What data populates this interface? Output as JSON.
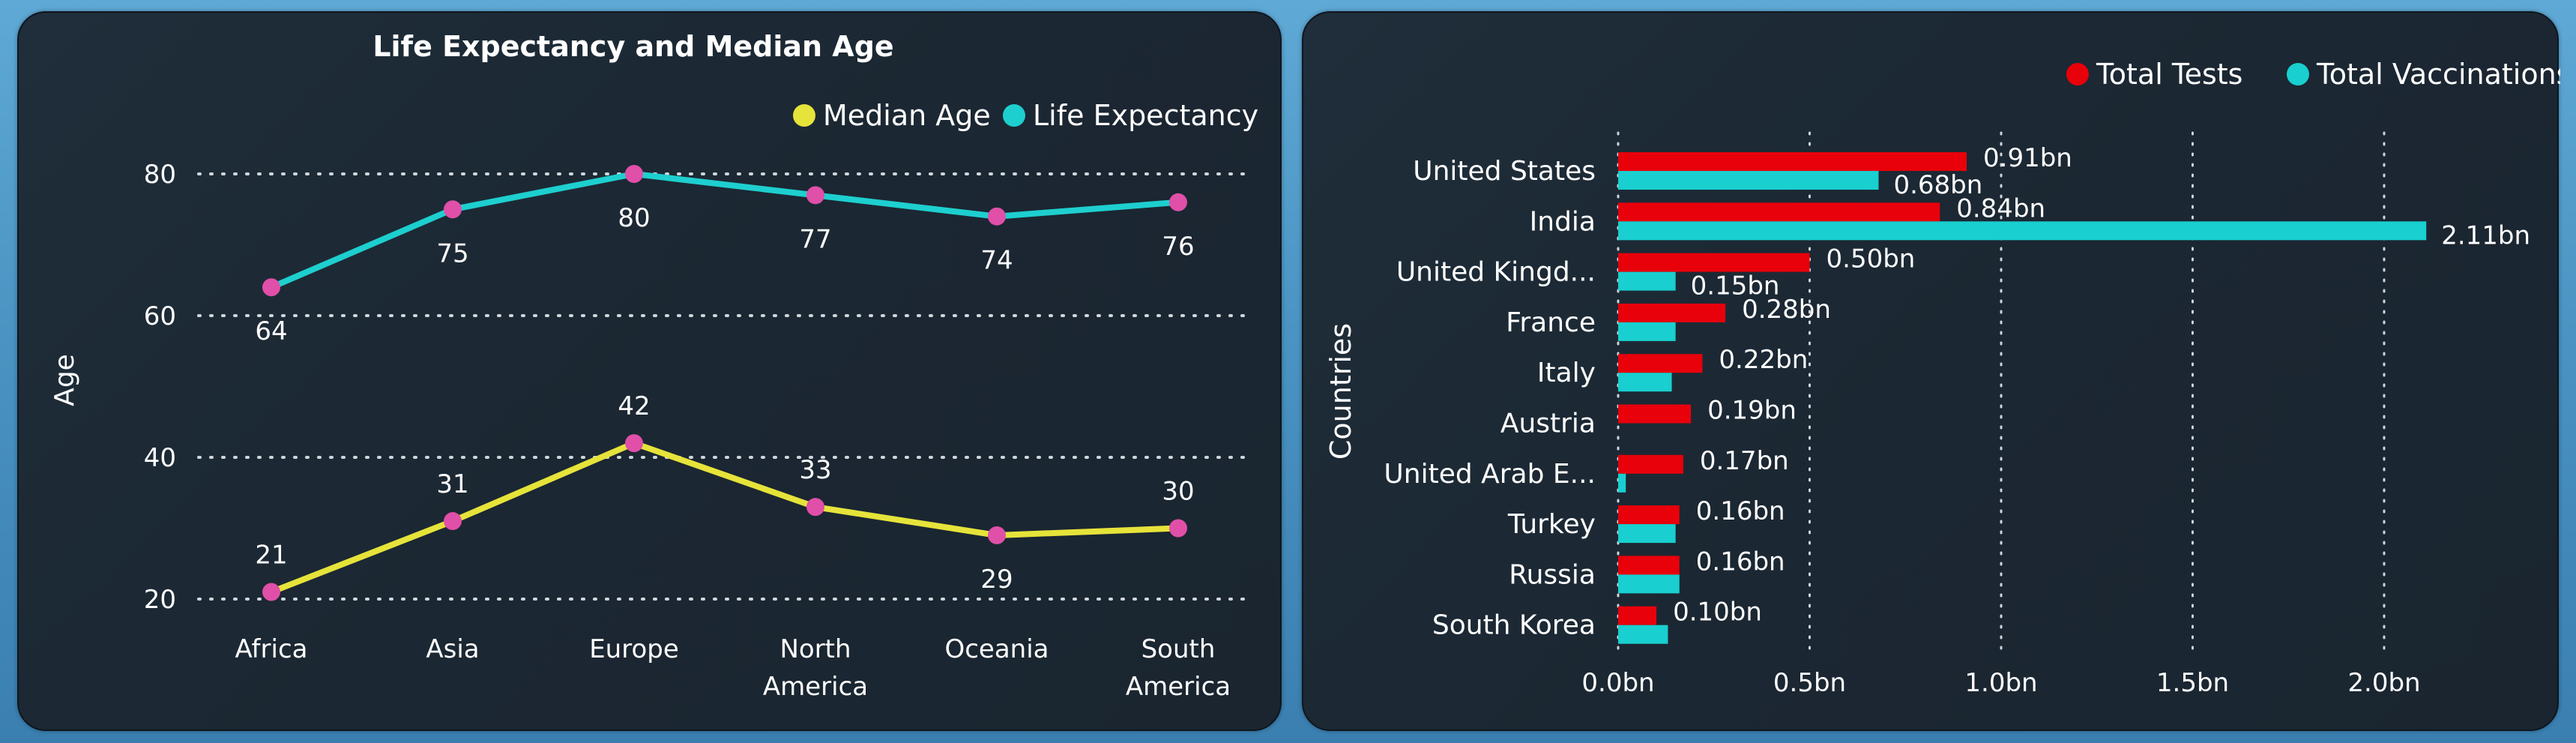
{
  "colors": {
    "median_age": "#e6e33a",
    "life_expectancy": "#1ecfcf",
    "marker": "#e04fa8",
    "total_tests": "#e8000b",
    "total_vaccinations": "#19cfcf",
    "text": "#ffffff",
    "grid": "#cfd6dc"
  },
  "chart_data": [
    {
      "type": "line",
      "title": "Life Expectancy and Median Age",
      "xlabel": "",
      "ylabel": "Age",
      "categories": [
        "Africa",
        "Asia",
        "Europe",
        "North America",
        "Oceania",
        "South America"
      ],
      "category_lines": [
        [
          "Africa"
        ],
        [
          "Asia"
        ],
        [
          "Europe"
        ],
        [
          "North",
          "America"
        ],
        [
          "Oceania"
        ],
        [
          "South",
          "America"
        ]
      ],
      "series": [
        {
          "name": "Median Age",
          "values": [
            21,
            31,
            42,
            33,
            29,
            30
          ]
        },
        {
          "name": "Life Expectancy",
          "values": [
            64,
            75,
            80,
            77,
            74,
            76
          ]
        }
      ],
      "data_labels": {
        "Median Age": [
          "21",
          "31",
          "42",
          "33",
          "29",
          "30"
        ],
        "Life Expectancy": [
          "64",
          "75",
          "80",
          "77",
          "74",
          "76"
        ]
      },
      "y_ticks": [
        20,
        40,
        60,
        80
      ],
      "y_tick_labels": [
        "20",
        "40",
        "60",
        "80"
      ],
      "ylim": [
        20,
        80
      ],
      "grid": true,
      "legend": "top-right"
    },
    {
      "type": "bar",
      "orientation": "horizontal",
      "title": "",
      "ylabel": "Countries",
      "xlabel": "",
      "categories": [
        "United States",
        "India",
        "United Kingd...",
        "France",
        "Italy",
        "Austria",
        "United Arab E...",
        "Turkey",
        "Russia",
        "South Korea"
      ],
      "series": [
        {
          "name": "Total Tests",
          "values": [
            0.91,
            0.84,
            0.5,
            0.28,
            0.22,
            0.19,
            0.17,
            0.16,
            0.16,
            0.1
          ],
          "labels": [
            "0.91bn",
            "0.84bn",
            "0.50bn",
            "0.28bn",
            "0.22bn",
            "0.19bn",
            "0.17bn",
            "0.16bn",
            "0.16bn",
            "0.10bn"
          ]
        },
        {
          "name": "Total Vaccinations",
          "values": [
            0.68,
            2.11,
            0.15,
            0.15,
            0.14,
            0.0,
            0.02,
            0.15,
            0.16,
            0.13
          ],
          "labels": [
            "0.68bn",
            "2.11bn",
            "0.15bn",
            "",
            "",
            "",
            "",
            "",
            "",
            ""
          ]
        }
      ],
      "x_ticks": [
        0,
        0.5,
        1.0,
        1.5,
        2.0
      ],
      "x_tick_labels": [
        "0.0bn",
        "0.5bn",
        "1.0bn",
        "1.5bn",
        "2.0bn"
      ],
      "xlim": [
        0,
        2.2
      ],
      "grid": true,
      "legend": "top-right"
    }
  ]
}
